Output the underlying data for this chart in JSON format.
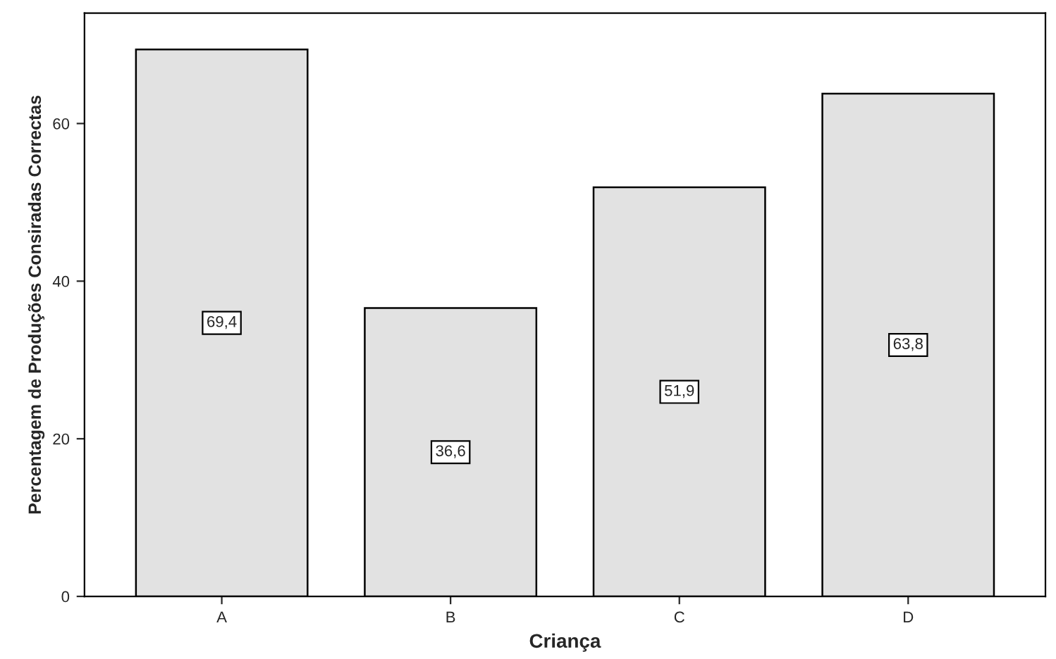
{
  "chart_data": {
    "type": "bar",
    "xlabel": "Criança",
    "ylabel": "Percentagem de Produções Consiradas Correctas",
    "categories": [
      "A",
      "B",
      "C",
      "D"
    ],
    "values": [
      69.4,
      36.6,
      51.9,
      63.8
    ],
    "value_labels": [
      "69,4",
      "36,6",
      "51,9",
      "63,8"
    ],
    "color": "#e2e2e2",
    "ylim": [
      0,
      74
    ],
    "yticks": [
      0,
      20,
      40,
      60
    ],
    "grid": false
  }
}
